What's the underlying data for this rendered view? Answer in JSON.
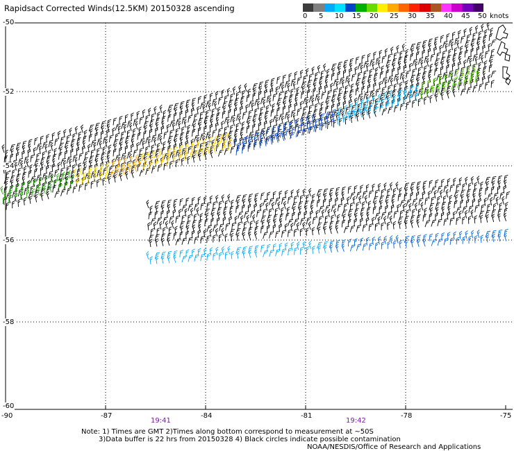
{
  "title": "Rapidsact Corrected Winds(12.5KM) 20150328 ascending",
  "colorbar": {
    "colors": [
      "#3c3c3c",
      "#808080",
      "#00aaff",
      "#00e0ff",
      "#0044cc",
      "#00b000",
      "#66dd00",
      "#ffee00",
      "#ffaa00",
      "#ff6600",
      "#ff2200",
      "#dd0000",
      "#aa5522",
      "#ff33ff",
      "#cc00cc",
      "#7700bb",
      "#440066"
    ],
    "labels": [
      "0",
      "5",
      "10",
      "15",
      "20",
      "25",
      "30",
      "35",
      "40",
      "45",
      "50",
      "knots"
    ]
  },
  "lat_labels": [
    "-50",
    "-52",
    "-54",
    "-56",
    "-58",
    "-60"
  ],
  "lon_labels": [
    "-90",
    "-87",
    "-84",
    "-81",
    "-78",
    "-75"
  ],
  "time_labels": [
    "19:41",
    "19:42"
  ],
  "notes": [
    "Note: 1) Times are GMT 2)Times along bottom correspond to measurement at ~50S",
    "3)Data buffer is 22 hrs from 20150328 4) Black circles indicate possible contamination",
    "NOAA/NESDIS/Office of Research and Applications"
  ]
}
